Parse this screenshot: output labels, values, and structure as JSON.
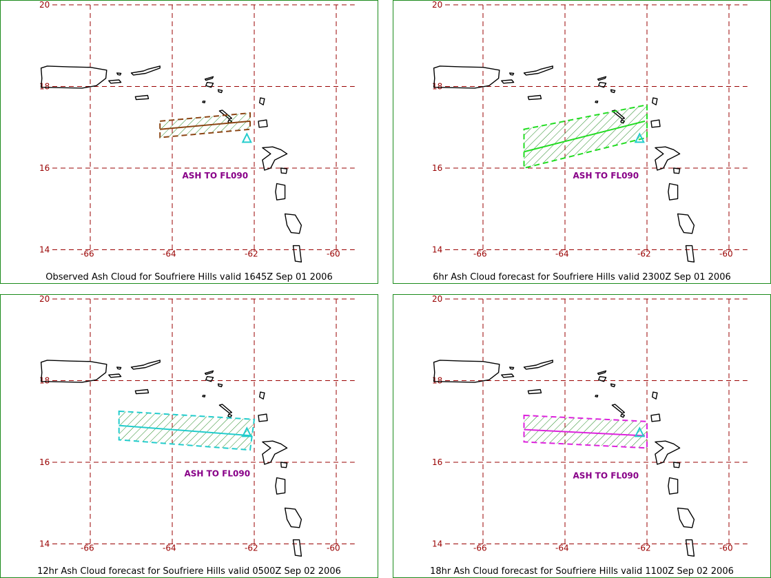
{
  "panels": [
    {
      "caption": "Observed Ash Cloud for Soufriere  Hills valid 1645Z Sep 01 2006",
      "ash_label": "ASH TO FL090",
      "cloud_color": "#8b4513",
      "cloud": [
        [
          -64.3,
          17.15
        ],
        [
          -62.1,
          17.35
        ],
        [
          -62.1,
          16.95
        ],
        [
          -64.3,
          16.75
        ]
      ],
      "trajectory": [
        [
          -64.3,
          16.95
        ],
        [
          -62.1,
          17.15
        ]
      ],
      "ash_label_position": [
        -63.0,
        15.75
      ]
    },
    {
      "caption": "6hr Ash Cloud forecast for Soufriere  Hills valid 2300Z Sep 01 2006",
      "ash_label": "ASH TO FL090",
      "cloud_color": "#22dd22",
      "cloud": [
        [
          -65.0,
          16.95
        ],
        [
          -62.0,
          17.55
        ],
        [
          -62.0,
          16.75
        ],
        [
          -65.0,
          16.0
        ]
      ],
      "trajectory": [
        [
          -65.0,
          16.4
        ],
        [
          -62.05,
          17.15
        ]
      ],
      "ash_label_position": [
        -63.05,
        15.75
      ]
    },
    {
      "caption": "12hr Ash Cloud forecast for Soufriere  Hills valid 0500Z Sep 02 2006",
      "ash_label": "ASH TO FL090",
      "cloud_color": "#22cccc",
      "cloud": [
        [
          -65.3,
          17.25
        ],
        [
          -62.0,
          17.05
        ],
        [
          -62.1,
          16.3
        ],
        [
          -65.3,
          16.55
        ]
      ],
      "trajectory": [
        [
          -65.3,
          16.9
        ],
        [
          -62.05,
          16.65
        ]
      ],
      "ash_label_position": [
        -62.95,
        15.65
      ]
    },
    {
      "caption": "18hr Ash Cloud forecast for Soufriere  Hills valid 1100Z Sep 02 2006",
      "ash_label": "ASH TO FL090",
      "cloud_color": "#dd22dd",
      "cloud": [
        [
          -65.0,
          17.15
        ],
        [
          -62.0,
          17.0
        ],
        [
          -62.0,
          16.35
        ],
        [
          -65.0,
          16.5
        ]
      ],
      "trajectory": [
        [
          -65.0,
          16.8
        ],
        [
          -62.05,
          16.65
        ]
      ],
      "ash_label_position": [
        -63.05,
        15.6
      ]
    }
  ],
  "lat_labels": [
    "20",
    "18",
    "16",
    "14"
  ],
  "lon_labels": [
    "-66",
    "-64",
    "-62",
    "-60"
  ],
  "volcano": [
    -62.18,
    16.72
  ],
  "colors": {
    "grid": "#990000",
    "label": "#990000",
    "coast": "#000000",
    "border": "#1a8a1a",
    "ash_text": "#880088",
    "volcano": "#22cccc"
  }
}
